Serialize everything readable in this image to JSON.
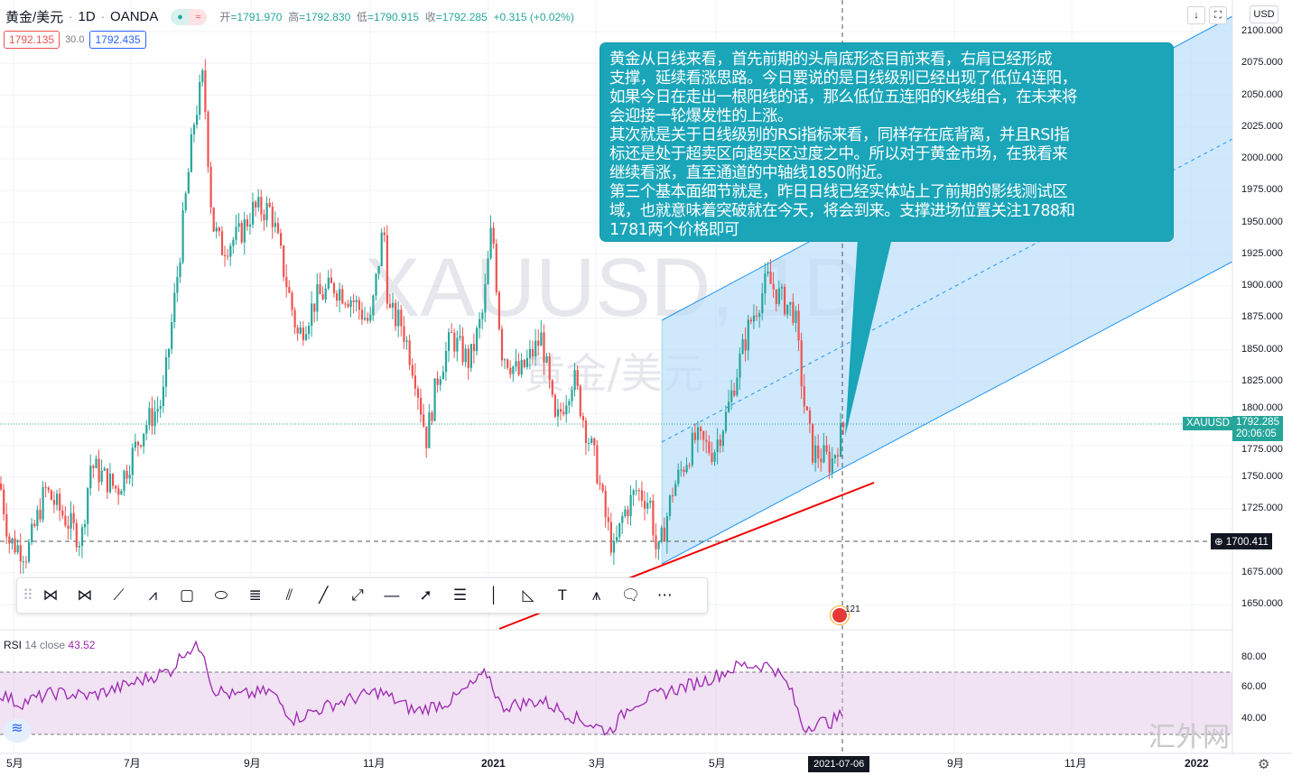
{
  "header": {
    "symbol": "黄金/美元",
    "interval": "1D",
    "exchange": "OANDA",
    "ohlc": [
      {
        "k": "开",
        "v": "1791.970"
      },
      {
        "k": "高",
        "v": "1792.830"
      },
      {
        "k": "低",
        "v": "1790.915"
      },
      {
        "k": "收",
        "v": "1792.285"
      }
    ],
    "change": "+0.315 (+0.02%)",
    "sell": "1792.135",
    "spread": "30.0",
    "buy": "1792.435",
    "currency": "USD"
  },
  "watermark": {
    "line1": "XAUUSD, 1D",
    "line2": "黄金/美元"
  },
  "callout": {
    "text": "黄金从日线来看，首先前期的头肩底形态目前来看，右肩已经形成\n支撑，延续看涨思路。今日要说的是日线级别已经出现了低位4连阳，\n如果今日在走出一根阳线的话，那么低位五连阳的K线组合，在未来将\n会迎接一轮爆发性的上涨。\n其次就是关于日线级别的RSi指标来看，同样存在底背离，并且RSI指\n标还是处于超卖区向超买区过度之中。所以对于黄金市场，在我看来\n继续看涨，直至通道的中轴线1850附近。\n第三个基本面细节就是，昨日日线已经实体站上了前期的影线测试区\n域，也就意味着突破就在今天，将会到来。支撑进场位置关注1788和\n1781两个价格即可",
    "color": "#1aa5b9"
  },
  "price_axis": {
    "ticks": [
      "2100.000",
      "2075.000",
      "2050.000",
      "2025.000",
      "2000.000",
      "1975.000",
      "1950.000",
      "1925.000",
      "1900.000",
      "1875.000",
      "1850.000",
      "1825.000",
      "1800.000",
      "1775.000",
      "1750.000",
      "1725.000",
      "1675.000",
      "1650.000"
    ],
    "symbol_tag": "XAUUSD",
    "last_price": "1792.285",
    "countdown": "20:06:05",
    "crosshair_price": "1700.411"
  },
  "rsi": {
    "label": "RSI",
    "params": "14 close",
    "value": "43.52",
    "ticks": [
      "80.00",
      "60.00",
      "40.00"
    ],
    "color": "#9c27b0"
  },
  "time_axis": {
    "labels": [
      "5月",
      "7月",
      "9月",
      "11月",
      "2021",
      "3月",
      "5月",
      "9月",
      "11月",
      "2022"
    ],
    "crosshair_date": "2021-07-06"
  },
  "event_badge": "121",
  "site_watermark": "汇外网",
  "colors": {
    "up": "#26a69a",
    "down": "#ef5350",
    "channel": "#2196f3",
    "support": "#f00000"
  },
  "toolbar": {
    "tools": [
      "xabcd-pattern-icon",
      "cypher-pattern-icon",
      "abcd-pattern-icon",
      "three-drives-icon",
      "rectangle-icon",
      "ellipse-icon",
      "fib-retracement-icon",
      "parallel-channel-icon",
      "trend-line-icon",
      "path-icon",
      "horizontal-line-icon",
      "arrow-icon",
      "horizontal-lines-icon",
      "vertical-line-icon",
      "triangle-icon",
      "text-icon",
      "elliott-wave-icon",
      "callout-icon",
      "price-range-icon"
    ]
  },
  "chart_data": {
    "type": "candlestick",
    "symbol": "XAUUSD",
    "ylim": [
      1640,
      2110
    ],
    "close_path": [
      [
        "2020-04",
        1745
      ],
      [
        "2020-05",
        1700
      ],
      [
        "2020-06",
        1740
      ],
      [
        "2020-07",
        1790
      ],
      [
        "2020-08",
        2065
      ],
      [
        "2020-09",
        1950
      ],
      [
        "2020-10",
        1900
      ],
      [
        "2020-11",
        1870
      ],
      [
        "2020-12",
        1830
      ],
      [
        "2021-01",
        1950
      ],
      [
        "2021-02",
        1830
      ],
      [
        "2021-03",
        1690
      ],
      [
        "2021-04",
        1740
      ],
      [
        "2021-05",
        1830
      ],
      [
        "2021-06",
        1905
      ],
      [
        "2021-06",
        1770
      ],
      [
        "2021-07-06",
        1792.285
      ]
    ],
    "rsi_path": [
      57,
      50,
      57,
      55,
      60,
      72,
      85,
      87,
      60,
      55,
      58,
      40,
      50,
      58,
      45,
      52,
      70,
      48,
      52,
      40,
      32,
      50,
      58,
      65,
      75,
      75,
      60,
      34,
      38,
      38,
      43.52
    ]
  }
}
